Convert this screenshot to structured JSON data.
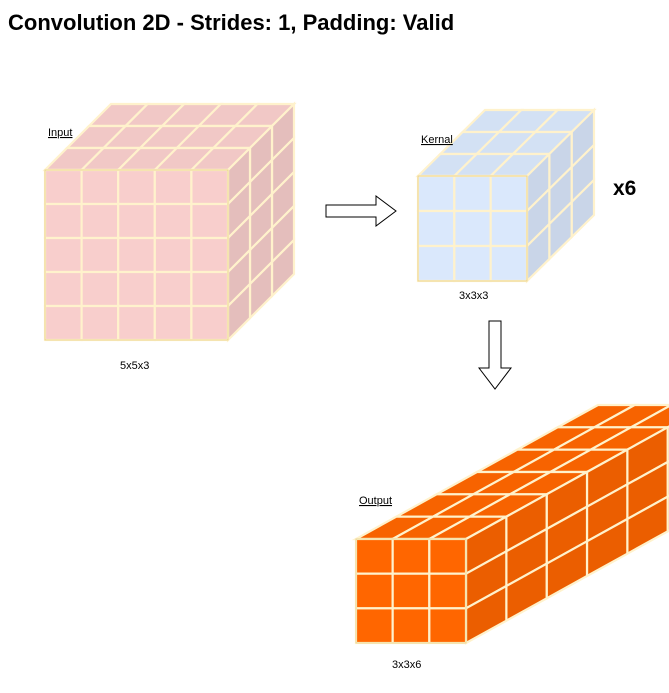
{
  "title": "Convolution 2D - Strides: 1, Padding: Valid",
  "colors": {
    "input": "#f8cecc",
    "kernel": "#dae8fc",
    "output": "#ff6600",
    "grid_line": "#fff2cc",
    "cube_border": "#d6b656",
    "arrow_stroke": "#000000"
  },
  "tensors": {
    "input": {
      "label": "Input",
      "dims_label": "5x5x3",
      "rows": 5,
      "cols": 5,
      "depth": 3
    },
    "kernel": {
      "label": "Kernal",
      "dims_label": "3x3x3",
      "rows": 3,
      "cols": 3,
      "depth": 3,
      "multiplier": "x6"
    },
    "output": {
      "label": "Output",
      "dims_label": "3x3x6",
      "rows": 3,
      "cols": 3,
      "depth": 6
    }
  },
  "arrows": [
    {
      "from": "input",
      "to": "kernel",
      "direction": "right"
    },
    {
      "from": "kernel",
      "to": "output",
      "direction": "down"
    }
  ]
}
